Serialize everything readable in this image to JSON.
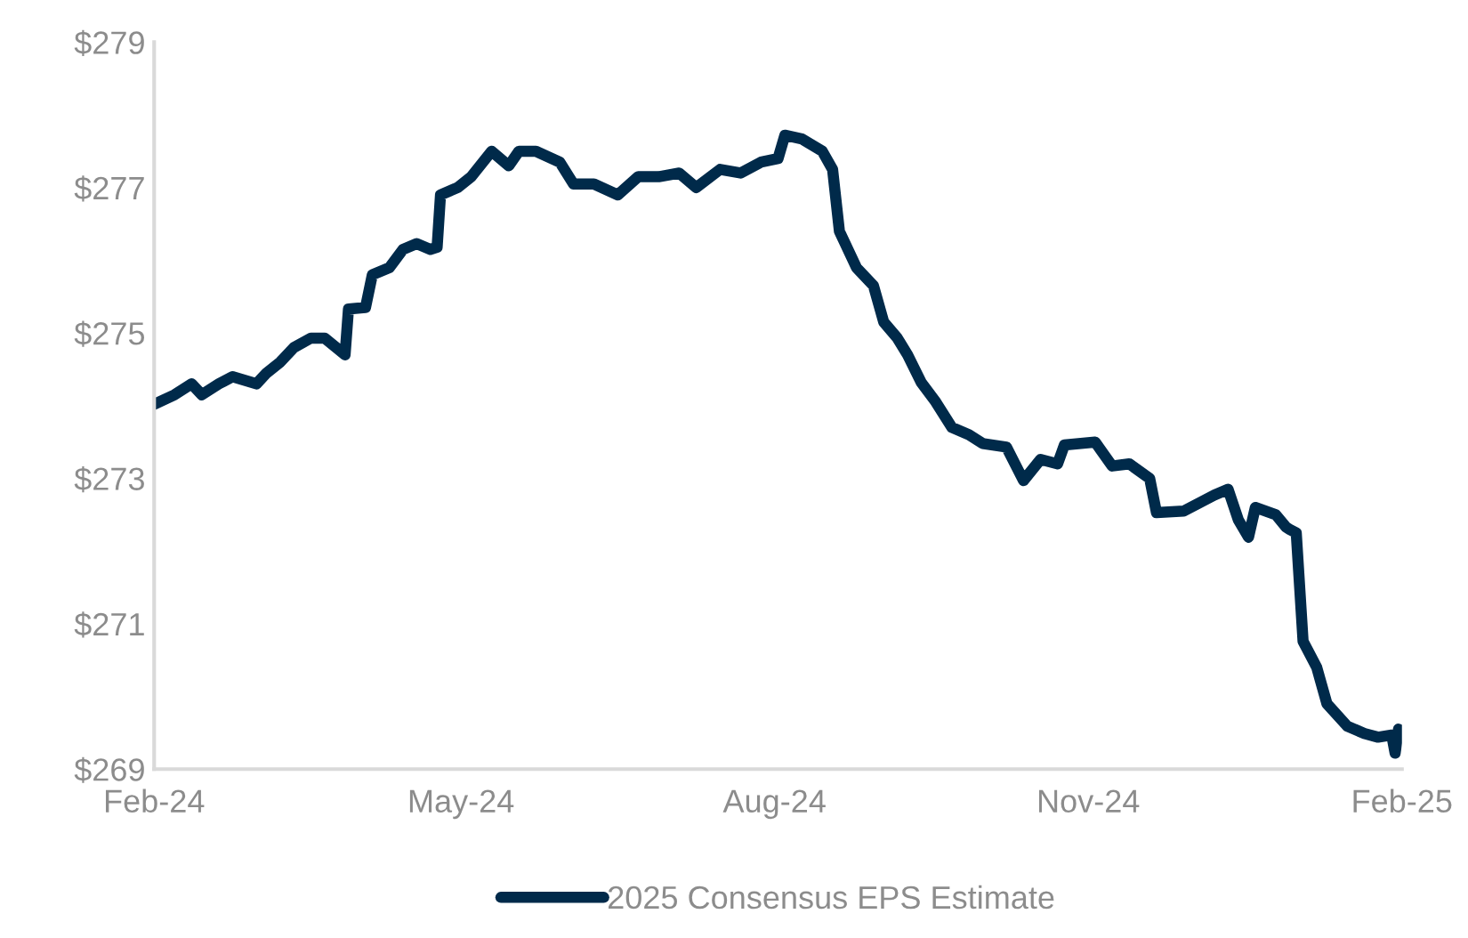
{
  "chart_data": {
    "type": "line",
    "x": [
      "2024-02-01",
      "2024-02-07",
      "2024-02-12",
      "2024-02-15",
      "2024-02-20",
      "2024-02-24",
      "2024-03-02",
      "2024-03-05",
      "2024-03-09",
      "2024-03-13",
      "2024-03-18",
      "2024-03-22",
      "2024-03-28",
      "2024-03-29",
      "2024-04-03",
      "2024-04-05",
      "2024-04-10",
      "2024-04-14",
      "2024-04-18",
      "2024-04-22",
      "2024-04-24",
      "2024-04-25",
      "2024-04-30",
      "2024-05-04",
      "2024-05-10",
      "2024-05-15",
      "2024-05-18",
      "2024-05-23",
      "2024-05-30",
      "2024-06-03",
      "2024-06-09",
      "2024-06-16",
      "2024-06-22",
      "2024-06-28",
      "2024-07-04",
      "2024-07-09",
      "2024-07-16",
      "2024-07-22",
      "2024-07-28",
      "2024-08-02",
      "2024-08-04",
      "2024-08-09",
      "2024-08-15",
      "2024-08-18",
      "2024-08-20",
      "2024-08-25",
      "2024-08-30",
      "2024-09-02",
      "2024-09-06",
      "2024-09-09",
      "2024-09-13",
      "2024-09-17",
      "2024-09-22",
      "2024-09-27",
      "2024-10-01",
      "2024-10-08",
      "2024-10-13",
      "2024-10-18",
      "2024-10-23",
      "2024-10-25",
      "2024-11-03",
      "2024-11-08",
      "2024-11-13",
      "2024-11-19",
      "2024-11-21",
      "2024-11-29",
      "2024-12-08",
      "2024-12-12",
      "2024-12-15",
      "2024-12-18",
      "2024-12-20",
      "2024-12-26",
      "2024-12-29",
      "2024-12-30",
      "2025-01-01",
      "2025-01-03",
      "2025-01-07",
      "2025-01-10",
      "2025-01-16",
      "2025-01-21",
      "2025-01-25",
      "2025-01-29",
      "2025-01-30",
      "2025-01-31"
    ],
    "series": [
      {
        "name": "2025 Consensus EPS Estimate",
        "color": "#002a4a",
        "values": [
          274.02,
          274.15,
          274.3,
          274.15,
          274.3,
          274.4,
          274.3,
          274.45,
          274.6,
          274.8,
          274.93,
          274.93,
          274.7,
          275.33,
          275.35,
          275.8,
          275.9,
          276.15,
          276.23,
          276.15,
          276.18,
          276.9,
          277.0,
          277.15,
          277.5,
          277.3,
          277.5,
          277.5,
          277.35,
          277.05,
          277.05,
          276.9,
          277.15,
          277.15,
          277.2,
          277.0,
          277.25,
          277.2,
          277.35,
          277.4,
          277.72,
          277.67,
          277.5,
          277.25,
          276.4,
          275.9,
          275.65,
          275.15,
          274.93,
          274.7,
          274.32,
          274.07,
          273.7,
          273.6,
          273.48,
          273.43,
          272.97,
          273.26,
          273.2,
          273.46,
          273.5,
          273.17,
          273.2,
          273.0,
          272.53,
          272.55,
          272.77,
          272.85,
          272.43,
          272.19,
          272.6,
          272.5,
          272.33,
          272.3,
          272.25,
          270.76,
          270.4,
          269.9,
          269.59,
          269.49,
          269.44,
          269.47,
          269.22,
          269.55
        ]
      }
    ],
    "xlim": [
      "2024-02-01",
      "2025-02-01"
    ],
    "xticks": [
      {
        "value": "2024-02-01",
        "label": "Feb-24"
      },
      {
        "value": "2024-05-01",
        "label": "May-24"
      },
      {
        "value": "2024-08-01",
        "label": "Aug-24"
      },
      {
        "value": "2024-11-01",
        "label": "Nov-24"
      },
      {
        "value": "2025-02-01",
        "label": "Feb-25"
      }
    ],
    "ylim": [
      269,
      279
    ],
    "yticks": [
      {
        "value": 269,
        "label": "$269"
      },
      {
        "value": 271,
        "label": "$271"
      },
      {
        "value": 273,
        "label": "$273"
      },
      {
        "value": 275,
        "label": "$275"
      },
      {
        "value": 277,
        "label": "$277"
      },
      {
        "value": 279,
        "label": "$279"
      }
    ],
    "grid": false,
    "legend": "bottom",
    "marker": "none",
    "line_style": "solid"
  }
}
